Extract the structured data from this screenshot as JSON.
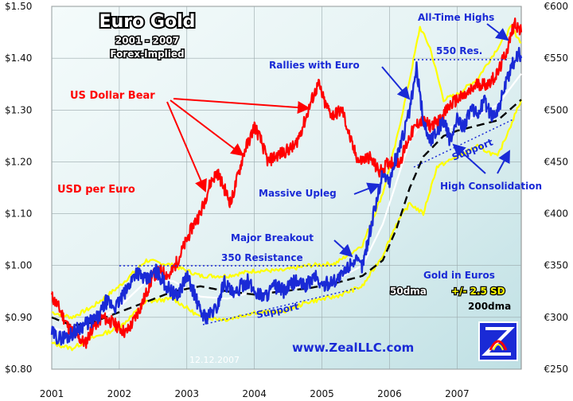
{
  "chart_data": {
    "type": "line",
    "title": "Euro Gold",
    "subtitle_line1": "2001 - 2007",
    "subtitle_line2": "Forex-Implied",
    "x_ticks": [
      "2001",
      "2002",
      "2003",
      "2004",
      "2005",
      "2006",
      "2007"
    ],
    "x_range": [
      2001.0,
      2007.95
    ],
    "y_left": {
      "label": "USD per Euro",
      "range": [
        0.8,
        1.5
      ],
      "ticks": [
        "$1.50",
        "$1.40",
        "$1.30",
        "$1.20",
        "$1.10",
        "$1.00",
        "$0.90",
        "$0.80"
      ],
      "tick_values": [
        1.5,
        1.4,
        1.3,
        1.2,
        1.1,
        1.0,
        0.9,
        0.8
      ]
    },
    "y_right": {
      "range": [
        250,
        600
      ],
      "ticks": [
        "€600",
        "€550",
        "€500",
        "€450",
        "€400",
        "€350",
        "€300",
        "€250"
      ],
      "tick_values": [
        600,
        550,
        500,
        450,
        400,
        350,
        300,
        250
      ]
    },
    "series": [
      {
        "name": "USD per Euro",
        "axis": "left",
        "color": "#ff0000",
        "x": [
          2001.0,
          2001.1,
          2001.25,
          2001.4,
          2001.5,
          2001.6,
          2001.75,
          2001.9,
          2002.0,
          2002.1,
          2002.2,
          2002.35,
          2002.5,
          2002.6,
          2002.75,
          2002.9,
          2003.0,
          2003.1,
          2003.2,
          2003.35,
          2003.45,
          2003.55,
          2003.65,
          2003.75,
          2003.85,
          2003.95,
          2004.0,
          2004.1,
          2004.2,
          2004.3,
          2004.45,
          2004.6,
          2004.75,
          2004.85,
          2004.95,
          2005.05,
          2005.15,
          2005.3,
          2005.45,
          2005.55,
          2005.7,
          2005.85,
          2006.0,
          2006.15,
          2006.3,
          2006.45,
          2006.6,
          2006.75,
          2006.9,
          2007.0,
          2007.15,
          2007.3,
          2007.45,
          2007.6,
          2007.75,
          2007.85,
          2007.95
        ],
        "y": [
          0.94,
          0.92,
          0.88,
          0.86,
          0.85,
          0.88,
          0.9,
          0.89,
          0.88,
          0.87,
          0.89,
          0.93,
          0.98,
          0.99,
          0.98,
          1.02,
          1.05,
          1.08,
          1.1,
          1.16,
          1.18,
          1.15,
          1.12,
          1.17,
          1.22,
          1.25,
          1.27,
          1.24,
          1.2,
          1.21,
          1.22,
          1.23,
          1.28,
          1.32,
          1.35,
          1.31,
          1.29,
          1.3,
          1.23,
          1.2,
          1.21,
          1.18,
          1.2,
          1.2,
          1.25,
          1.28,
          1.27,
          1.28,
          1.31,
          1.32,
          1.33,
          1.35,
          1.35,
          1.37,
          1.42,
          1.47,
          1.45
        ]
      },
      {
        "name": "Gold in Euros",
        "axis": "right",
        "color": "#1a2ad6",
        "x": [
          2001.0,
          2001.1,
          2001.25,
          2001.4,
          2001.55,
          2001.7,
          2001.8,
          2001.95,
          2002.1,
          2002.25,
          2002.4,
          2002.55,
          2002.7,
          2002.85,
          2003.0,
          2003.1,
          2003.2,
          2003.3,
          2003.45,
          2003.55,
          2003.7,
          2003.8,
          2003.9,
          2004.0,
          2004.15,
          2004.3,
          2004.45,
          2004.6,
          2004.75,
          2004.9,
          2005.0,
          2005.15,
          2005.3,
          2005.45,
          2005.6,
          2005.7,
          2005.8,
          2005.9,
          2006.0,
          2006.1,
          2006.2,
          2006.3,
          2006.4,
          2006.5,
          2006.6,
          2006.7,
          2006.8,
          2006.9,
          2007.0,
          2007.1,
          2007.2,
          2007.3,
          2007.4,
          2007.5,
          2007.6,
          2007.7,
          2007.8,
          2007.9,
          2007.95
        ],
        "y": [
          285,
          280,
          282,
          290,
          295,
          300,
          315,
          310,
          325,
          345,
          335,
          345,
          330,
          320,
          340,
          325,
          305,
          300,
          310,
          335,
          320,
          330,
          335,
          325,
          320,
          330,
          325,
          335,
          330,
          340,
          330,
          335,
          340,
          355,
          350,
          380,
          410,
          440,
          430,
          455,
          475,
          500,
          540,
          490,
          470,
          480,
          490,
          470,
          490,
          485,
          500,
          495,
          510,
          495,
          500,
          520,
          540,
          555,
          550
        ]
      },
      {
        "name": "50dma",
        "axis": "right",
        "color": "#ffffff",
        "x": [
          2001.0,
          2001.3,
          2001.6,
          2002.0,
          2002.4,
          2002.8,
          2003.2,
          2003.6,
          2004.0,
          2004.4,
          2004.8,
          2005.2,
          2005.6,
          2005.9,
          2006.1,
          2006.3,
          2006.5,
          2006.7,
          2007.0,
          2007.3,
          2007.6,
          2007.95
        ],
        "y": [
          290,
          285,
          295,
          310,
          335,
          335,
          320,
          318,
          325,
          325,
          332,
          336,
          350,
          390,
          430,
          470,
          490,
          480,
          485,
          495,
          505,
          535
        ]
      },
      {
        "name": "+/- 2.5 SD upper",
        "axis": "right",
        "color": "#ffff00",
        "x": [
          2001.0,
          2001.3,
          2001.6,
          2002.0,
          2002.4,
          2002.8,
          2003.2,
          2003.6,
          2004.0,
          2004.4,
          2004.8,
          2005.2,
          2005.6,
          2005.9,
          2006.1,
          2006.3,
          2006.45,
          2006.6,
          2006.8,
          2007.0,
          2007.3,
          2007.6,
          2007.8,
          2007.95
        ],
        "y": [
          305,
          300,
          310,
          330,
          355,
          350,
          340,
          340,
          345,
          345,
          350,
          352,
          370,
          420,
          470,
          530,
          580,
          560,
          510,
          515,
          530,
          560,
          580,
          565
        ]
      },
      {
        "name": "+/- 2.5 SD lower",
        "axis": "right",
        "color": "#ffff00",
        "x": [
          2001.0,
          2001.3,
          2001.6,
          2002.0,
          2002.4,
          2002.8,
          2003.2,
          2003.6,
          2004.0,
          2004.4,
          2004.8,
          2005.2,
          2005.6,
          2005.9,
          2006.1,
          2006.3,
          2006.5,
          2006.7,
          2007.0,
          2007.3,
          2007.6,
          2007.95
        ],
        "y": [
          275,
          270,
          280,
          290,
          315,
          318,
          300,
          298,
          305,
          305,
          315,
          320,
          330,
          360,
          390,
          410,
          400,
          445,
          455,
          465,
          455,
          510
        ]
      },
      {
        "name": "200dma",
        "axis": "right",
        "color": "#000000",
        "dashed": true,
        "x": [
          2001.0,
          2001.3,
          2001.6,
          2002.0,
          2002.4,
          2002.8,
          2003.2,
          2003.6,
          2004.0,
          2004.4,
          2004.8,
          2005.2,
          2005.6,
          2005.9,
          2006.1,
          2006.3,
          2006.5,
          2006.8,
          2007.0,
          2007.3,
          2007.6,
          2007.95
        ],
        "y": [
          300,
          292,
          295,
          305,
          315,
          325,
          330,
          325,
          322,
          325,
          328,
          333,
          340,
          355,
          385,
          425,
          455,
          475,
          480,
          485,
          490,
          510
        ]
      }
    ],
    "annotations": {
      "us_dollar_bear": "US Dollar Bear",
      "usd_per_euro": "USD per Euro",
      "rallies_with_euro": "Rallies with Euro",
      "all_time_highs": "All-Time Highs",
      "res_550": "550 Res.",
      "massive_upleg": "Massive Upleg",
      "major_breakout": "Major Breakout",
      "resistance_350": "350 Resistance",
      "support_low": "Support",
      "support_high": "Support",
      "high_consolidation": "High Consolidation",
      "gold_in_euros": "Gold in Euros",
      "dma50": "50dma",
      "sd": "+/- 2.5 SD",
      "dma200": "200dma",
      "url": "www.ZealLLC.com",
      "date": "12.12.2007"
    },
    "grid": true,
    "background_color": "#cfe7ea"
  }
}
